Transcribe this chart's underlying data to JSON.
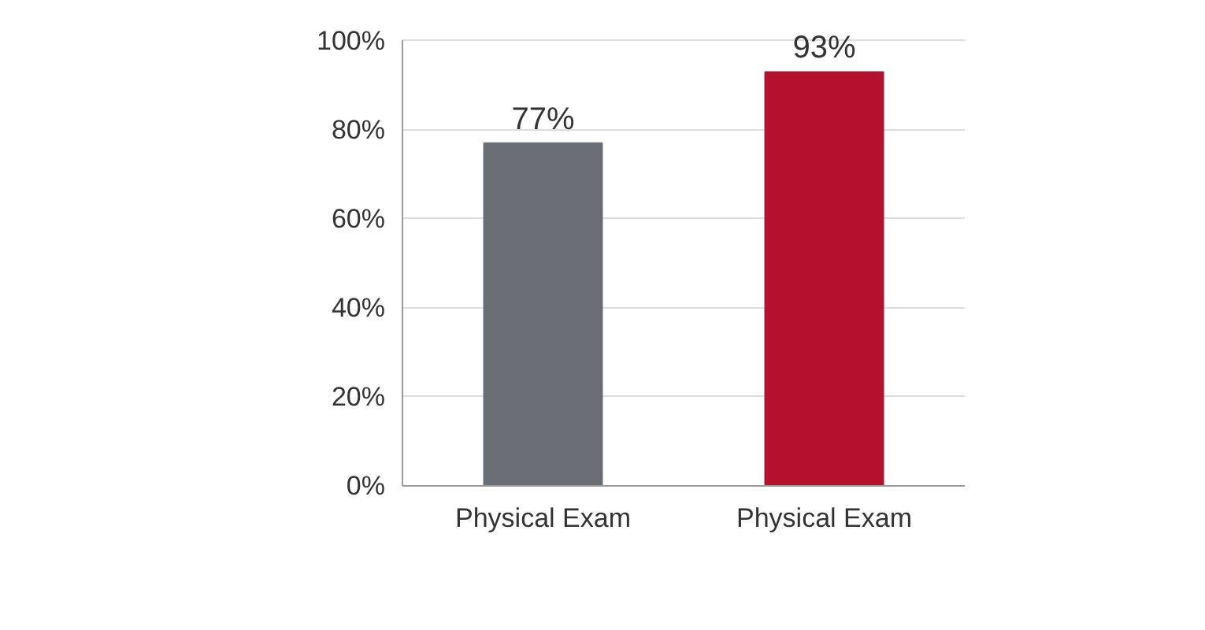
{
  "chart_data": {
    "type": "bar",
    "categories": [
      "Physical Exam",
      "Physical Exam"
    ],
    "values": [
      77,
      93
    ],
    "colors": [
      "#6b6e75",
      "#b5112f"
    ],
    "value_labels": [
      "77%",
      "93%"
    ],
    "ylim": [
      0,
      100
    ],
    "yticks": [
      {
        "value": 0,
        "label": "0%"
      },
      {
        "value": 20,
        "label": "20%"
      },
      {
        "value": 40,
        "label": "40%"
      },
      {
        "value": 60,
        "label": "60%"
      },
      {
        "value": 80,
        "label": "80%"
      },
      {
        "value": 100,
        "label": "100%"
      }
    ],
    "grid": "y"
  }
}
